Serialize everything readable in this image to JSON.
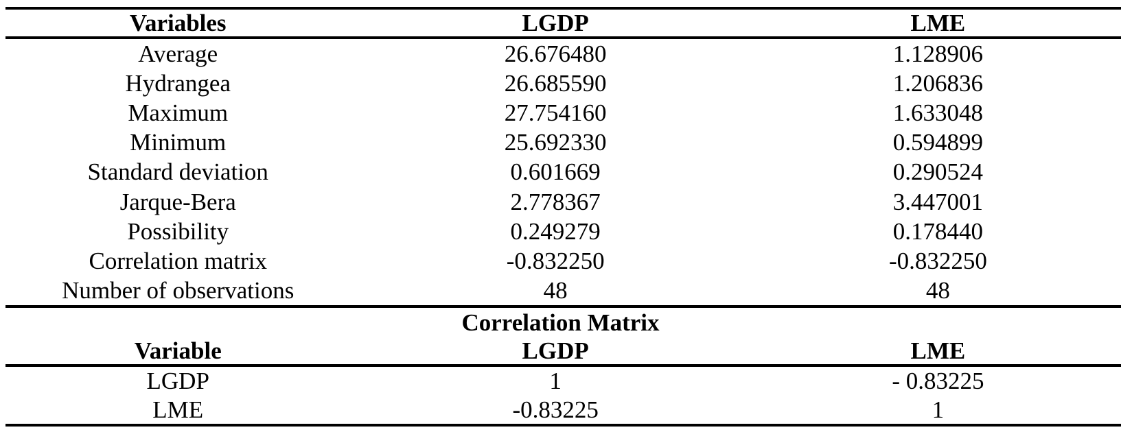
{
  "page": {
    "background_color": "#ffffff",
    "text_color": "#000000",
    "rule_color": "#000000"
  },
  "descriptive_table": {
    "columns": [
      "Variables",
      "LGDP",
      "LME"
    ],
    "rows": [
      {
        "label": "Average",
        "lgdp": "26.676480",
        "lme": "1.128906"
      },
      {
        "label": "Hydrangea",
        "lgdp": "26.685590",
        "lme": "1.206836"
      },
      {
        "label": "Maximum",
        "lgdp": "27.754160",
        "lme": "1.633048"
      },
      {
        "label": "Minimum",
        "lgdp": "25.692330",
        "lme": "0.594899"
      },
      {
        "label": "Standard deviation",
        "lgdp": "0.601669",
        "lme": "0.290524"
      },
      {
        "label": "Jarque-Bera",
        "lgdp": "2.778367",
        "lme": "3.447001"
      },
      {
        "label": "Possibility",
        "lgdp": "0.249279",
        "lme": "0.178440"
      },
      {
        "label": "Correlation matrix",
        "lgdp": "-0.832250",
        "lme": "-0.832250"
      },
      {
        "label": "Number of observations",
        "lgdp": "48",
        "lme": "48"
      }
    ]
  },
  "correlation_table": {
    "title": "Correlation Matrix",
    "columns": [
      "Variable",
      "LGDP",
      "LME"
    ],
    "rows": [
      {
        "label": "LGDP",
        "lgdp": "1",
        "lme": "- 0.83225"
      },
      {
        "label": "LME",
        "lgdp": "-0.83225",
        "lme": "1"
      }
    ]
  }
}
